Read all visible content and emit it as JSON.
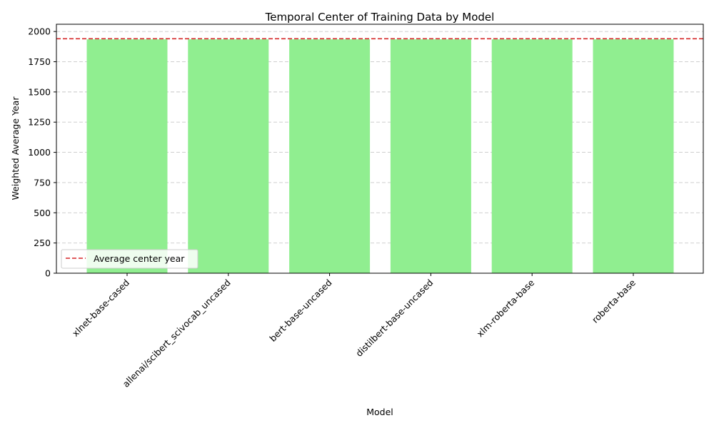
{
  "chart_data": {
    "type": "bar",
    "title": "Temporal Center of Training Data by Model",
    "xlabel": "Model",
    "ylabel": "Weighted Average Year",
    "categories": [
      "xlnet-base-cased",
      "allenai/scibert_scivocab_uncased",
      "bert-base-uncased",
      "distilbert-base-uncased",
      "xlm-roberta-base",
      "roberta-base"
    ],
    "values": [
      1935,
      1935,
      1935,
      1935,
      1935,
      1935
    ],
    "ylim": [
      0,
      2060
    ],
    "yticks": [
      0,
      250,
      500,
      750,
      1000,
      1250,
      1500,
      1750,
      2000
    ],
    "reference_line": {
      "label": "Average center year",
      "value": 1940,
      "color": "#d62728",
      "style": "dashed"
    },
    "bar_color": "#90ee90",
    "grid": "y-dashed",
    "legend_position": "lower-left"
  }
}
